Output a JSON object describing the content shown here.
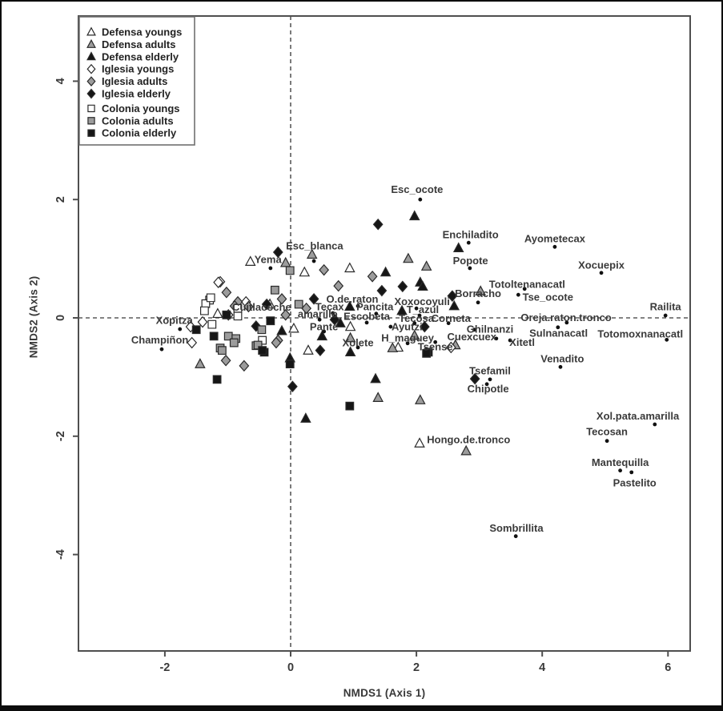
{
  "colors": {
    "white_fill": "#ffffff",
    "gray_fill": "#9c9c9c",
    "black_fill": "#161616",
    "marker_stroke": "#2a2a2a",
    "dot": "#111111",
    "text": "#3a3a3a",
    "frame": "#4f4f4f",
    "dashed_line": "#5a5a5a",
    "legend_border": "#6f6f6f"
  },
  "chart_data": {
    "type": "scatter",
    "title": "",
    "xlabel": "NMDS1 (Axis 1)",
    "ylabel": "NMDS2 (Axis 2)",
    "xlim": [
      -3.37,
      6.35
    ],
    "ylim": [
      -5.64,
      5.09
    ],
    "xticks": [
      "-2",
      "0",
      "2",
      "4",
      "6"
    ],
    "yticks": [
      "4",
      "2",
      "0",
      "-2",
      "-4"
    ],
    "grid": false,
    "reference_lines": {
      "vertical_x": 0,
      "horizontal_y": 0,
      "style": "dashed"
    },
    "legend": {
      "position": "top-left"
    },
    "series": [
      {
        "name": "Defensa youngs",
        "marker": "triangle",
        "fill": "white",
        "points": [
          [
            -0.64,
            0.95
          ],
          [
            0.94,
            0.84
          ],
          [
            0.22,
            0.77
          ],
          [
            -0.33,
            0.23
          ],
          [
            -1.16,
            0.07
          ],
          [
            0.05,
            -0.18
          ],
          [
            0.95,
            -0.15
          ],
          [
            1.71,
            -0.5
          ],
          [
            0.28,
            -0.55
          ],
          [
            2.05,
            -2.12
          ]
        ]
      },
      {
        "name": "Defensa adults",
        "marker": "triangle",
        "fill": "gray",
        "points": [
          [
            0.34,
            1.07
          ],
          [
            -0.08,
            0.93
          ],
          [
            1.87,
            1.0
          ],
          [
            2.16,
            0.87
          ],
          [
            3.02,
            0.45
          ],
          [
            0.95,
            -0.34
          ],
          [
            1.97,
            -0.3
          ],
          [
            1.62,
            -0.51
          ],
          [
            2.62,
            -0.46
          ],
          [
            -1.44,
            -0.78
          ],
          [
            1.39,
            -1.35
          ],
          [
            2.06,
            -1.39
          ],
          [
            2.79,
            -2.25
          ]
        ]
      },
      {
        "name": "Defensa elderly",
        "marker": "triangle",
        "fill": "black",
        "points": [
          [
            1.97,
            1.72
          ],
          [
            2.67,
            1.18
          ],
          [
            1.51,
            0.77
          ],
          [
            2.06,
            0.6
          ],
          [
            2.1,
            0.53
          ],
          [
            0.94,
            0.19
          ],
          [
            1.77,
            0.12
          ],
          [
            2.6,
            0.2
          ],
          [
            -0.14,
            -0.22
          ],
          [
            0.79,
            -0.09
          ],
          [
            0.5,
            -0.31
          ],
          [
            -0.01,
            -0.68
          ],
          [
            0.95,
            -0.58
          ],
          [
            1.35,
            -1.03
          ],
          [
            0.24,
            -1.7
          ]
        ]
      },
      {
        "name": "Iglesia youngs",
        "marker": "diamond",
        "fill": "white",
        "points": [
          [
            -1.12,
            0.61
          ],
          [
            -1.15,
            0.6
          ],
          [
            -0.71,
            0.27
          ],
          [
            -0.99,
            0.05
          ],
          [
            -1.4,
            -0.07
          ],
          [
            -1.59,
            -0.15
          ],
          [
            2.55,
            -0.5
          ],
          [
            -1.57,
            -0.42
          ]
        ]
      },
      {
        "name": "Iglesia adults",
        "marker": "diamond",
        "fill": "gray",
        "points": [
          [
            0.53,
            0.81
          ],
          [
            1.3,
            0.7
          ],
          [
            0.76,
            0.54
          ],
          [
            -1.02,
            0.43
          ],
          [
            0.25,
            0.16
          ],
          [
            -0.84,
            0.27
          ],
          [
            -0.14,
            0.32
          ],
          [
            -0.67,
            0.19
          ],
          [
            -0.89,
            0.2
          ],
          [
            -0.08,
            0.05
          ],
          [
            -0.2,
            -0.38
          ],
          [
            -1.03,
            -0.72
          ],
          [
            -0.74,
            -0.81
          ],
          [
            -0.23,
            -0.42
          ]
        ]
      },
      {
        "name": "Iglesia elderly",
        "marker": "diamond",
        "fill": "black",
        "points": [
          [
            1.39,
            1.58
          ],
          [
            -0.2,
            1.11
          ],
          [
            1.78,
            0.53
          ],
          [
            1.45,
            0.46
          ],
          [
            2.57,
            0.37
          ],
          [
            0.37,
            0.32
          ],
          [
            -0.38,
            0.23
          ],
          [
            -0.55,
            -0.14
          ],
          [
            0.7,
            -0.03
          ],
          [
            0.47,
            -0.55
          ],
          [
            0.03,
            -1.16
          ],
          [
            2.93,
            -1.03
          ],
          [
            2.13,
            -0.15
          ]
        ]
      },
      {
        "name": "Colonia youngs",
        "marker": "square",
        "fill": "white",
        "points": [
          [
            -1.29,
            0.3
          ],
          [
            -1.35,
            0.24
          ],
          [
            -1.27,
            0.34
          ],
          [
            -1.37,
            0.12
          ],
          [
            -0.84,
            0.16
          ],
          [
            -0.84,
            0.03
          ],
          [
            -1.25,
            -0.11
          ],
          [
            -0.45,
            -0.38
          ]
        ]
      },
      {
        "name": "Colonia adults",
        "marker": "square",
        "fill": "gray",
        "points": [
          [
            -0.01,
            0.8
          ],
          [
            -0.25,
            0.47
          ],
          [
            0.13,
            0.23
          ],
          [
            -0.46,
            -0.2
          ],
          [
            -0.99,
            -0.31
          ],
          [
            -0.87,
            -0.35
          ],
          [
            -0.55,
            -0.47
          ],
          [
            -1.12,
            -0.51
          ],
          [
            -1.09,
            -0.55
          ],
          [
            -0.9,
            -0.42
          ],
          [
            -0.52,
            -0.46
          ]
        ]
      },
      {
        "name": "Colonia elderly",
        "marker": "square",
        "fill": "black",
        "points": [
          [
            -1.02,
            0.05
          ],
          [
            -1.5,
            -0.2
          ],
          [
            -0.32,
            -0.05
          ],
          [
            2.19,
            -0.58
          ],
          [
            -1.22,
            -0.31
          ],
          [
            -1.17,
            -1.04
          ],
          [
            -0.42,
            -0.58
          ],
          [
            -0.45,
            -0.55
          ],
          [
            -0.01,
            -0.78
          ],
          [
            0.94,
            -1.49
          ],
          [
            2.16,
            -0.6
          ]
        ]
      }
    ],
    "species": [
      {
        "n": "Esc_ocote",
        "x": 2.06,
        "y": 2.0,
        "lx": 2.01,
        "ly": 2.17
      },
      {
        "n": "Enchiladito",
        "x": 2.83,
        "y": 1.27,
        "lx": 2.86,
        "ly": 1.41
      },
      {
        "n": "Ayometecax",
        "x": 4.2,
        "y": 1.2,
        "lx": 4.2,
        "ly": 1.34
      },
      {
        "n": "Popote",
        "x": 2.85,
        "y": 0.84,
        "lx": 2.86,
        "ly": 0.97
      },
      {
        "n": "Xocuepix",
        "x": 4.94,
        "y": 0.76,
        "lx": 4.94,
        "ly": 0.89
      },
      {
        "n": "Esc_blanca",
        "x": 0.37,
        "y": 0.96,
        "lx": 0.38,
        "ly": 1.22
      },
      {
        "n": "Yema",
        "x": -0.32,
        "y": 0.84,
        "lx": -0.36,
        "ly": 0.99
      },
      {
        "n": "Totoltenanacatl",
        "x": 3.72,
        "y": 0.49,
        "lx": 3.76,
        "ly": 0.57
      },
      {
        "n": "Tse_ocote",
        "x": 3.62,
        "y": 0.39,
        "lx": 4.09,
        "ly": 0.35
      },
      {
        "n": "Railita",
        "x": 5.96,
        "y": 0.04,
        "lx": 5.96,
        "ly": 0.19
      },
      {
        "n": "Borracho",
        "x": 2.98,
        "y": 0.26,
        "lx": 2.98,
        "ly": 0.41
      },
      {
        "n": "Xoxocoyuli",
        "x": 2.0,
        "y": 0.16,
        "lx": 2.09,
        "ly": 0.28
      },
      {
        "n": "O.de.raton",
        "x": 1.07,
        "y": 0.2,
        "lx": 0.98,
        "ly": 0.32
      },
      {
        "n": "Tecax",
        "x": 0.67,
        "y": 0.08,
        "lx": 0.62,
        "ly": 0.19
      },
      {
        "n": "Pancita",
        "x": 1.36,
        "y": 0.07,
        "lx": 1.34,
        "ly": 0.19
      },
      {
        "n": "amarillo",
        "x": 0.46,
        "y": -0.03,
        "lx": 0.43,
        "ly": 0.07
      },
      {
        "n": "Escobeta",
        "x": 1.21,
        "y": -0.08,
        "lx": 1.21,
        "ly": 0.03
      },
      {
        "n": "T_azul",
        "x": 2.05,
        "y": 0.04,
        "lx": 2.1,
        "ly": 0.14
      },
      {
        "n": "Tecosa",
        "x": 1.97,
        "y": -0.09,
        "lx": 2.0,
        "ly": -0.01
      },
      {
        "n": "Corneta",
        "x": 2.51,
        "y": -0.09,
        "lx": 2.55,
        "ly": -0.01
      },
      {
        "n": "Pante",
        "x": 0.53,
        "y": -0.23,
        "lx": 0.53,
        "ly": -0.15
      },
      {
        "n": "Ayutzi",
        "x": 1.59,
        "y": -0.15,
        "lx": 1.85,
        "ly": -0.15
      },
      {
        "n": "H_maguey",
        "x": 1.86,
        "y": -0.43,
        "lx": 1.86,
        "ly": -0.34
      },
      {
        "n": "Xolete",
        "x": 1.07,
        "y": -0.5,
        "lx": 1.07,
        "ly": -0.42
      },
      {
        "n": "Tsense",
        "x": 2.3,
        "y": -0.41,
        "lx": 2.3,
        "ly": -0.49
      },
      {
        "n": "Cuexcuex",
        "x": 3.27,
        "y": -0.35,
        "lx": 2.88,
        "ly": -0.32
      },
      {
        "n": "Xitetl",
        "x": 3.49,
        "y": -0.38,
        "lx": 3.68,
        "ly": -0.41
      },
      {
        "n": "Ghilnanzi",
        "x": 2.92,
        "y": -0.2,
        "lx": 3.17,
        "ly": -0.19
      },
      {
        "n": "Sulnanacatl",
        "x": 4.25,
        "y": -0.16,
        "lx": 4.26,
        "ly": -0.26
      },
      {
        "n": "Oreja.raton.tronco",
        "x": 4.39,
        "y": -0.08,
        "lx": 4.38,
        "ly": 0.01
      },
      {
        "n": "Totomoxnanacatl",
        "x": 5.98,
        "y": -0.37,
        "lx": 5.56,
        "ly": -0.27
      },
      {
        "n": "Venadito",
        "x": 4.29,
        "y": -0.83,
        "lx": 4.32,
        "ly": -0.69
      },
      {
        "n": "Tsefamil",
        "x": 3.17,
        "y": -1.04,
        "lx": 3.17,
        "ly": -0.89
      },
      {
        "n": "Chipotle",
        "x": 3.12,
        "y": -1.12,
        "lx": 3.14,
        "ly": -1.2
      },
      {
        "n": "Xol.pata.amarilla",
        "x": 5.79,
        "y": -1.8,
        "lx": 5.52,
        "ly": -1.66
      },
      {
        "n": "Tecosan",
        "x": 5.03,
        "y": -2.08,
        "lx": 5.03,
        "ly": -1.92
      },
      {
        "n": "Hongo.de.tronco",
        "nd": true,
        "x": 2.83,
        "y": -2.2,
        "lx": 2.83,
        "ly": -2.06
      },
      {
        "n": "Mantequilla",
        "x": 5.24,
        "y": -2.58,
        "lx": 5.24,
        "ly": -2.44
      },
      {
        "n": "Pastelito",
        "x": 5.42,
        "y": -2.61,
        "lx": 5.47,
        "ly": -2.79
      },
      {
        "n": "Sombrillita",
        "x": 3.58,
        "y": -3.69,
        "lx": 3.59,
        "ly": -3.55
      },
      {
        "n": "Xopitza",
        "x": -1.76,
        "y": -0.19,
        "lx": -1.85,
        "ly": -0.04
      },
      {
        "n": "Champiñon",
        "x": -2.05,
        "y": -0.53,
        "lx": -2.08,
        "ly": -0.37
      },
      {
        "n": "Cuitlacoche",
        "nd": true,
        "x": -0.46,
        "y": 0.07,
        "lx": -0.46,
        "ly": 0.18
      }
    ]
  }
}
